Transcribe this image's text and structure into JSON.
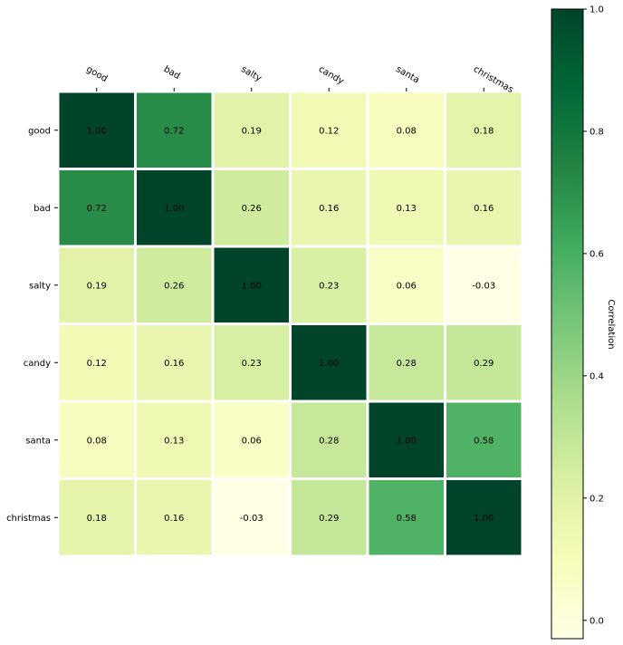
{
  "chart_data": {
    "type": "heatmap",
    "title": "",
    "x_categories": [
      "good",
      "bad",
      "salty",
      "candy",
      "santa",
      "christmas"
    ],
    "y_categories": [
      "good",
      "bad",
      "salty",
      "candy",
      "santa",
      "christmas"
    ],
    "values": [
      [
        1.0,
        0.72,
        0.19,
        0.12,
        0.08,
        0.18
      ],
      [
        0.72,
        1.0,
        0.26,
        0.16,
        0.13,
        0.16
      ],
      [
        0.19,
        0.26,
        1.0,
        0.23,
        0.06,
        -0.03
      ],
      [
        0.12,
        0.16,
        0.23,
        1.0,
        0.28,
        0.29
      ],
      [
        0.08,
        0.13,
        0.06,
        0.28,
        1.0,
        0.58
      ],
      [
        0.18,
        0.16,
        -0.03,
        0.29,
        0.58,
        1.0
      ]
    ],
    "cell_labels": [
      [
        "1.00",
        "0.72",
        "0.19",
        "0.12",
        "0.08",
        "0.18"
      ],
      [
        "0.72",
        "1.00",
        "0.26",
        "0.16",
        "0.13",
        "0.16"
      ],
      [
        "0.19",
        "0.26",
        "1.00",
        "0.23",
        "0.06",
        "-0.03"
      ],
      [
        "0.12",
        "0.16",
        "0.23",
        "1.00",
        "0.28",
        "0.29"
      ],
      [
        "0.08",
        "0.13",
        "0.06",
        "0.28",
        "1.00",
        "0.58"
      ],
      [
        "0.18",
        "0.16",
        "-0.03",
        "0.29",
        "0.58",
        "1.00"
      ]
    ],
    "colormap": "YlGn",
    "vmin": -0.03,
    "vmax": 1.0,
    "x_tick_position": "top",
    "grid": false,
    "cell_border_color": "#ffffff",
    "colorbar": {
      "label": "Correlation",
      "ticks": [
        0.0,
        0.2,
        0.4,
        0.6,
        0.8,
        1.0
      ],
      "tick_labels": [
        "0.0",
        "0.2",
        "0.4",
        "0.6",
        "0.8",
        "1.0"
      ],
      "placement": "right"
    }
  }
}
